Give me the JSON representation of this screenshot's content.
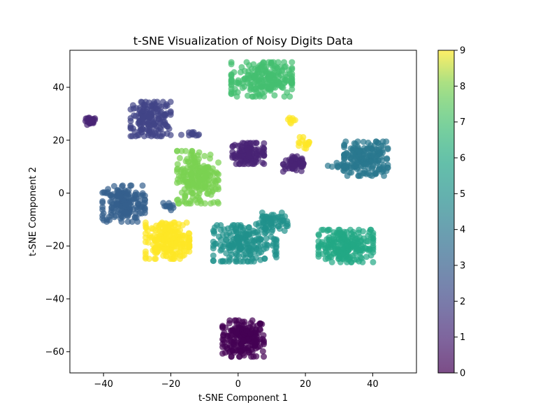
{
  "chart_data": {
    "type": "scatter",
    "title": "t-SNE Visualization of Noisy Digits Data",
    "xlabel": "t-SNE Component 1",
    "ylabel": "t-SNE Component 2",
    "xlim": [
      -50,
      53
    ],
    "ylim": [
      -68,
      54
    ],
    "xticks": [
      -40,
      -20,
      0,
      20,
      40
    ],
    "yticks": [
      -60,
      -40,
      -20,
      0,
      20,
      40
    ],
    "grid": false,
    "marker_alpha": 0.7,
    "colorbar": {
      "colormap": "viridis",
      "range": [
        0,
        9
      ],
      "ticks": [
        0,
        1,
        2,
        3,
        4,
        5,
        6,
        7,
        8,
        9
      ]
    },
    "clusters": [
      {
        "label": 0,
        "center": [
          1.5,
          -55
        ],
        "spread": [
          3.4,
          3.8
        ],
        "count": 200
      },
      {
        "label": 1,
        "center": [
          3,
          15
        ],
        "spread": [
          2.6,
          2.2
        ],
        "count": 120
      },
      {
        "label": 1,
        "center": [
          17,
          11
        ],
        "spread": [
          2.0,
          1.6
        ],
        "count": 60
      },
      {
        "label": 1,
        "center": [
          -44,
          27
        ],
        "spread": [
          0.9,
          0.8
        ],
        "count": 30
      },
      {
        "label": 2,
        "center": [
          -26,
          28
        ],
        "spread": [
          3.3,
          3.6
        ],
        "count": 170
      },
      {
        "label": 2,
        "center": [
          -14,
          22
        ],
        "spread": [
          1.6,
          0.6
        ],
        "count": 12
      },
      {
        "label": 3,
        "center": [
          -34,
          -4
        ],
        "spread": [
          3.5,
          3.8
        ],
        "count": 180
      },
      {
        "label": 3,
        "center": [
          -21,
          -5
        ],
        "spread": [
          1.0,
          0.8
        ],
        "count": 12
      },
      {
        "label": 4,
        "center": [
          38,
          13
        ],
        "spread": [
          3.6,
          3.6
        ],
        "count": 180
      },
      {
        "label": 4,
        "center": [
          31,
          10
        ],
        "spread": [
          2.4,
          0.8
        ],
        "count": 25
      },
      {
        "label": 5,
        "center": [
          2,
          -19
        ],
        "spread": [
          5.2,
          3.8
        ],
        "count": 200
      },
      {
        "label": 5,
        "center": [
          10,
          -11
        ],
        "spread": [
          2.6,
          2.0
        ],
        "count": 60
      },
      {
        "label": 6,
        "center": [
          32,
          -20
        ],
        "spread": [
          4.5,
          3.4
        ],
        "count": 220
      },
      {
        "label": 7,
        "center": [
          7,
          43
        ],
        "spread": [
          5.0,
          3.6
        ],
        "count": 220
      },
      {
        "label": 8,
        "center": [
          -12,
          6
        ],
        "spread": [
          3.4,
          5.5
        ],
        "count": 220
      },
      {
        "label": 9,
        "center": [
          -21,
          -18
        ],
        "spread": [
          3.6,
          3.8
        ],
        "count": 210
      },
      {
        "label": 9,
        "center": [
          20,
          19
        ],
        "spread": [
          1.1,
          1.2
        ],
        "count": 15
      },
      {
        "label": 9,
        "center": [
          16,
          27
        ],
        "spread": [
          0.7,
          0.8
        ],
        "count": 8
      }
    ]
  }
}
